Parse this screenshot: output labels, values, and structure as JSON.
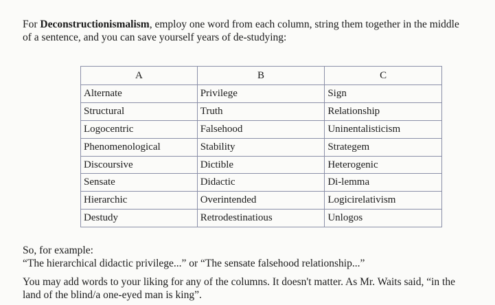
{
  "intro": {
    "prefix": "For ",
    "bold": "Deconstructionismalism",
    "line1_rest": ", employ one word from each column, string them together in the middle",
    "line2": "of a sentence, and you can save yourself years of de-studying:"
  },
  "table": {
    "headers": [
      "A",
      "B",
      "C"
    ],
    "rows": [
      [
        "Alternate",
        "Privilege",
        "Sign"
      ],
      [
        "Structural",
        "Truth",
        "Relationship"
      ],
      [
        "Logocentric",
        "Falsehood",
        "Uninentalisticism"
      ],
      [
        "Phenomenological",
        "Stability",
        "Strategem"
      ],
      [
        "Discoursive",
        "Dictible",
        "Heterogenic"
      ],
      [
        "Sensate",
        "Didactic",
        "Di-lemma"
      ],
      [
        "Hierarchic",
        "Overintended",
        "Logicirelativism"
      ],
      [
        "Destudy",
        "Retrodestinatious",
        "Unlogos"
      ]
    ]
  },
  "example": {
    "line1": "So, for example:",
    "line2": "“The hierarchical didactic privilege...”  or “The sensate falsehood relationship...”"
  },
  "closing": {
    "line1": "You may add words to your liking for any of the columns.  It doesn't matter.  As Mr. Waits said, “in the",
    "line2": "land of the blind/a one-eyed man is king”."
  }
}
